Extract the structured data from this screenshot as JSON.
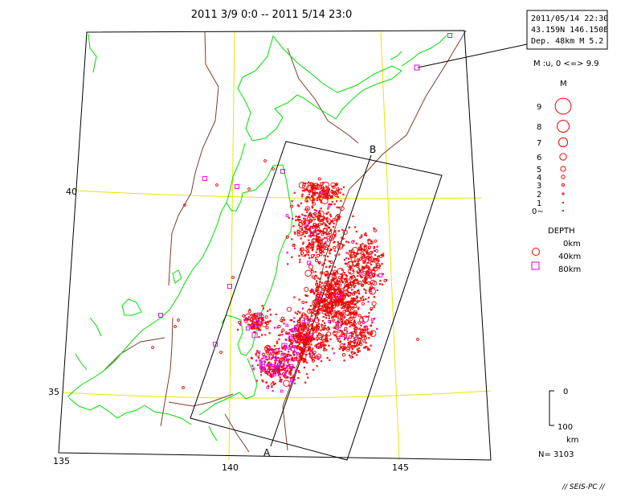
{
  "header": {
    "title": "2011  3/9 0:0 -- 2011  5/14 23:0"
  },
  "info_box": {
    "line1": "2011/05/14 22:30",
    "line2": "43.159N   146.150E",
    "line3": "Dep. 48km    M 5.2"
  },
  "magnitude_legend": {
    "range_text": "M :u,  0 <=> 9.9",
    "title": "M",
    "levels": [
      "9",
      "8",
      "7",
      "6",
      "5",
      "4",
      "3",
      "2",
      "1",
      "0"
    ],
    "zero_suffix": "~"
  },
  "depth_legend": {
    "title": "DEPTH",
    "items": [
      "0km",
      "40km",
      "80km"
    ]
  },
  "depth_scale": {
    "top": "0",
    "bottom": "100",
    "unit": "km"
  },
  "count_text": "N= 3103",
  "footer": "// SEIS-PC //",
  "map": {
    "longitude_labels": [
      "135",
      "140",
      "145"
    ],
    "latitude_labels": [
      "40",
      "35"
    ],
    "cross_section": {
      "start_label": "A",
      "end_label": "B"
    },
    "colors": {
      "coastline": "#00dd00",
      "grid": "#e6e600",
      "faults": "#7a3f2a",
      "shallow_event": "#ee0000",
      "deep_event": "#dd00dd",
      "frame": "#000000"
    },
    "highlight_event": {
      "lat": 43.159,
      "lon": 146.15,
      "depth_km": 48,
      "magnitude": 5.2
    }
  }
}
